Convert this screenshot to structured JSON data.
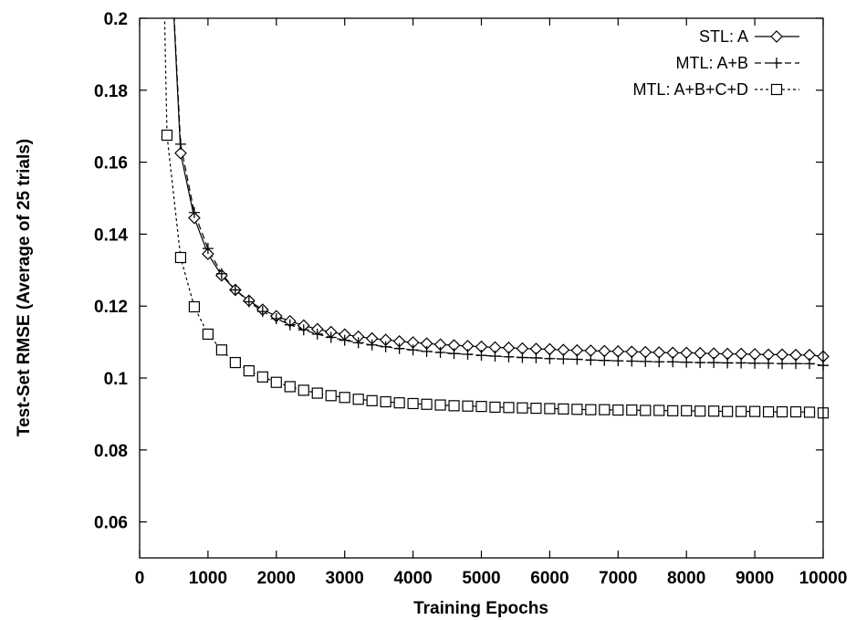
{
  "chart_data": {
    "type": "line",
    "title": "",
    "xlabel": "Training Epochs",
    "ylabel": "Test-Set RMSE (Average of 25 trials)",
    "xlim": [
      0,
      10000
    ],
    "ylim": [
      0.05,
      0.2
    ],
    "xticks": [
      0,
      1000,
      2000,
      3000,
      4000,
      5000,
      6000,
      7000,
      8000,
      9000,
      10000
    ],
    "xtick_labels": [
      "0",
      "1000",
      "2000",
      "3000",
      "4000",
      "5000",
      "6000",
      "7000",
      "8000",
      "9000",
      "10000"
    ],
    "yticks": [
      0.06,
      0.08,
      0.1,
      0.12,
      0.14,
      0.16,
      0.18,
      0.2
    ],
    "ytick_labels": [
      "0.06",
      "0.08",
      "0.1",
      "0.12",
      "0.14",
      "0.16",
      "0.18",
      "0.2"
    ],
    "grid": false,
    "legend_position": "top-right",
    "series": [
      {
        "name": "STL: A",
        "marker": "diamond",
        "line_style": "solid",
        "color": "#000000",
        "x": [
          600,
          800,
          1000,
          1200,
          1400,
          1600,
          1800,
          2000,
          2200,
          2400,
          2600,
          2800,
          3000,
          3200,
          3400,
          3600,
          3800,
          4000,
          4200,
          4400,
          4600,
          4800,
          5000,
          5200,
          5400,
          5600,
          5800,
          6000,
          6200,
          6400,
          6600,
          6800,
          7000,
          7200,
          7400,
          7600,
          7800,
          8000,
          8200,
          8400,
          8600,
          8800,
          9000,
          9200,
          9400,
          9600,
          9800,
          10000
        ],
        "y": [
          0.1625,
          0.1445,
          0.1345,
          0.1285,
          0.1245,
          0.1215,
          0.119,
          0.1172,
          0.1158,
          0.1146,
          0.1136,
          0.1128,
          0.1121,
          0.1115,
          0.111,
          0.1106,
          0.1102,
          0.1099,
          0.1096,
          0.1093,
          0.1091,
          0.1089,
          0.1087,
          0.1085,
          0.1084,
          0.1082,
          0.1081,
          0.108,
          0.1078,
          0.1077,
          0.1076,
          0.1075,
          0.1074,
          0.1073,
          0.1072,
          0.1071,
          0.107,
          0.107,
          0.1069,
          0.1068,
          0.1067,
          0.1067,
          0.1066,
          0.1065,
          0.1065,
          0.1064,
          0.1064,
          0.106
        ]
      },
      {
        "name": "MTL: A+B",
        "marker": "plus",
        "line_style": "dashed",
        "color": "#000000",
        "x": [
          600,
          800,
          1000,
          1200,
          1400,
          1600,
          1800,
          2000,
          2200,
          2400,
          2600,
          2800,
          3000,
          3200,
          3400,
          3600,
          3800,
          4000,
          4200,
          4400,
          4600,
          4800,
          5000,
          5200,
          5400,
          5600,
          5800,
          6000,
          6200,
          6400,
          6600,
          6800,
          7000,
          7200,
          7400,
          7600,
          7800,
          8000,
          8200,
          8400,
          8600,
          8800,
          9000,
          9200,
          9400,
          9600,
          9800,
          10000
        ],
        "y": [
          0.165,
          0.146,
          0.136,
          0.129,
          0.1245,
          0.1212,
          0.1185,
          0.1165,
          0.1148,
          0.1134,
          0.1122,
          0.1113,
          0.1105,
          0.1098,
          0.1092,
          0.1087,
          0.1082,
          0.1078,
          0.1074,
          0.1071,
          0.1068,
          0.1066,
          0.1063,
          0.1061,
          0.1059,
          0.1057,
          0.1056,
          0.1054,
          0.1053,
          0.1052,
          0.105,
          0.1049,
          0.1048,
          0.1047,
          0.1046,
          0.1045,
          0.1045,
          0.1044,
          0.1043,
          0.1043,
          0.1042,
          0.1042,
          0.1041,
          0.1041,
          0.104,
          0.104,
          0.104,
          0.1035
        ]
      },
      {
        "name": "MTL: A+B+C+D",
        "marker": "square",
        "line_style": "dotted",
        "color": "#000000",
        "x": [
          400,
          600,
          800,
          1000,
          1200,
          1400,
          1600,
          1800,
          2000,
          2200,
          2400,
          2600,
          2800,
          3000,
          3200,
          3400,
          3600,
          3800,
          4000,
          4200,
          4400,
          4600,
          4800,
          5000,
          5200,
          5400,
          5600,
          5800,
          6000,
          6200,
          6400,
          6600,
          6800,
          7000,
          7200,
          7400,
          7600,
          7800,
          8000,
          8200,
          8400,
          8600,
          8800,
          9000,
          9200,
          9400,
          9600,
          9800,
          10000
        ],
        "y": [
          0.1675,
          0.1335,
          0.1198,
          0.1122,
          0.1078,
          0.1043,
          0.102,
          0.1003,
          0.0988,
          0.0976,
          0.0966,
          0.0958,
          0.0951,
          0.0946,
          0.0941,
          0.0937,
          0.0934,
          0.0931,
          0.0929,
          0.0927,
          0.0925,
          0.0923,
          0.0922,
          0.0921,
          0.0919,
          0.0918,
          0.0917,
          0.0916,
          0.0915,
          0.0914,
          0.0913,
          0.0912,
          0.0912,
          0.0911,
          0.0911,
          0.091,
          0.091,
          0.0909,
          0.0909,
          0.0908,
          0.0908,
          0.0907,
          0.0907,
          0.0907,
          0.0906,
          0.0906,
          0.0906,
          0.0905,
          0.0903
        ]
      }
    ]
  }
}
